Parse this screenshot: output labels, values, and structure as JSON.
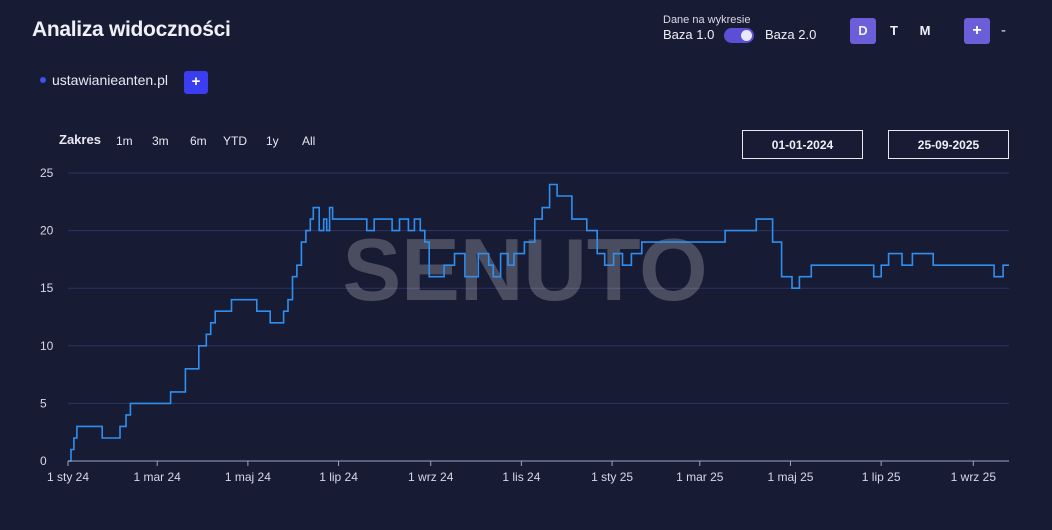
{
  "header": {
    "title": "Analiza widoczności",
    "dane_label": "Dane na wykresie",
    "baza1": "Baza 1.0",
    "baza2": "Baza 2.0",
    "granularity": [
      "D",
      "T",
      "M"
    ],
    "active_granularity": "D",
    "plus_label": "+",
    "minus_label": "-"
  },
  "domain": {
    "name": "ustawianieanten.pl",
    "add_label": "+",
    "color": "#3d50f0"
  },
  "range": {
    "label": "Zakres",
    "buttons": [
      "1m",
      "3m",
      "6m",
      "YTD",
      "1y",
      "All"
    ],
    "start": "01-01-2024",
    "end": "25-09-2025"
  },
  "watermark": "SENUTO",
  "colors": {
    "background": "#181b34",
    "line": "#2e8ff0",
    "grid": "#2c3560",
    "accent": "#6a5fd8"
  },
  "chart_data": {
    "type": "line",
    "title": "",
    "xlabel": "",
    "ylabel": "",
    "ylim": [
      0,
      25
    ],
    "yticks": [
      0,
      5,
      10,
      15,
      20,
      25
    ],
    "xlim": [
      "2024-01-01",
      "2025-09-25"
    ],
    "xticks": [
      {
        "date": "2024-01-01",
        "label": "1 sty 24"
      },
      {
        "date": "2024-03-01",
        "label": "1 mar 24"
      },
      {
        "date": "2024-05-01",
        "label": "1 maj 24"
      },
      {
        "date": "2024-07-01",
        "label": "1 lip 24"
      },
      {
        "date": "2024-09-01",
        "label": "1 wrz 24"
      },
      {
        "date": "2024-11-01",
        "label": "1 lis 24"
      },
      {
        "date": "2025-01-01",
        "label": "1 sty 25"
      },
      {
        "date": "2025-03-01",
        "label": "1 mar 25"
      },
      {
        "date": "2025-05-01",
        "label": "1 maj 25"
      },
      {
        "date": "2025-07-01",
        "label": "1 lip 25"
      },
      {
        "date": "2025-09-01",
        "label": "1 wrz 25"
      }
    ],
    "grid": true,
    "legend": "none",
    "series": [
      {
        "name": "ustawianieanten.pl",
        "color": "#2e8ff0",
        "x": [
          "2024-01-01",
          "2024-01-03",
          "2024-01-05",
          "2024-01-07",
          "2024-01-09",
          "2024-01-13",
          "2024-01-24",
          "2024-02-05",
          "2024-02-09",
          "2024-02-12",
          "2024-02-15",
          "2024-02-18",
          "2024-02-20",
          "2024-02-23",
          "2024-03-01",
          "2024-03-10",
          "2024-03-15",
          "2024-03-20",
          "2024-03-29",
          "2024-04-03",
          "2024-04-06",
          "2024-04-09",
          "2024-04-11",
          "2024-04-20",
          "2024-05-07",
          "2024-05-16",
          "2024-05-25",
          "2024-05-28",
          "2024-05-31",
          "2024-06-03",
          "2024-06-06",
          "2024-06-09",
          "2024-06-12",
          "2024-06-14",
          "2024-06-18",
          "2024-06-21",
          "2024-06-23",
          "2024-06-25",
          "2024-06-27",
          "2024-06-29",
          "2024-07-01",
          "2024-07-03",
          "2024-07-05",
          "2024-07-07",
          "2024-07-09",
          "2024-07-11",
          "2024-07-13",
          "2024-07-16",
          "2024-07-20",
          "2024-07-25",
          "2024-08-06",
          "2024-08-11",
          "2024-08-17",
          "2024-08-21",
          "2024-08-25",
          "2024-08-28",
          "2024-08-31",
          "2024-09-10",
          "2024-09-17",
          "2024-09-24",
          "2024-10-03",
          "2024-10-10",
          "2024-10-13",
          "2024-10-18",
          "2024-10-23",
          "2024-10-27",
          "2024-11-03",
          "2024-11-10",
          "2024-11-15",
          "2024-11-20",
          "2024-11-25",
          "2024-12-05",
          "2024-12-15",
          "2024-12-22",
          "2024-12-27",
          "2025-01-02",
          "2025-01-08",
          "2025-01-14",
          "2025-01-21",
          "2025-01-31",
          "2025-02-08",
          "2025-02-15",
          "2025-02-21",
          "2025-03-08",
          "2025-03-18",
          "2025-04-02",
          "2025-04-08",
          "2025-04-19",
          "2025-04-25",
          "2025-05-02",
          "2025-05-07",
          "2025-05-15",
          "2025-06-01",
          "2025-06-26",
          "2025-07-01",
          "2025-07-06",
          "2025-07-15",
          "2025-07-22",
          "2025-08-05",
          "2025-08-15",
          "2025-08-29",
          "2025-09-15",
          "2025-09-21",
          "2025-09-25"
        ],
        "y": [
          0,
          1,
          2,
          3,
          3,
          3,
          2,
          3,
          4,
          5,
          5,
          5,
          5,
          5,
          5,
          6,
          6,
          8,
          10,
          11,
          12,
          13,
          13,
          14,
          13,
          12,
          13,
          14,
          16,
          17,
          19,
          20,
          21,
          22,
          20,
          21,
          20,
          22,
          21,
          21,
          21,
          21,
          21,
          21,
          21,
          21,
          21,
          21,
          20,
          21,
          20,
          21,
          20,
          21,
          20,
          19,
          16,
          17,
          18,
          16,
          18,
          17,
          16,
          18,
          17,
          18,
          19,
          21,
          22,
          24,
          23,
          21,
          20,
          18,
          17,
          18,
          17,
          18,
          19,
          19,
          19,
          19,
          19,
          19,
          20,
          20,
          21,
          19,
          16,
          15,
          16,
          17,
          17,
          16,
          17,
          18,
          17,
          18,
          17,
          17,
          17,
          16,
          17,
          17
        ]
      }
    ]
  }
}
